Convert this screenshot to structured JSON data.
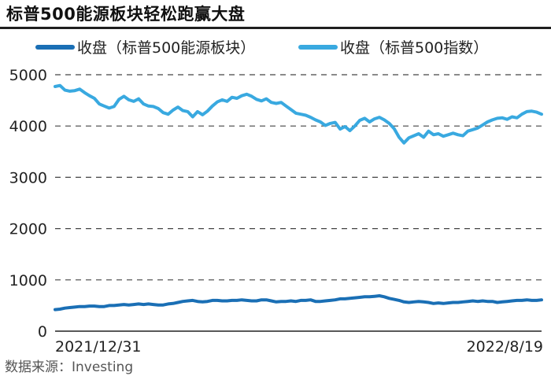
{
  "header": {
    "title": "标普500能源板块轻松跑赢大盘"
  },
  "footer": {
    "source": "数据来源：Investing"
  },
  "colors": {
    "energy": "#1a6fb5",
    "sp500": "#39a9e0",
    "grid": "#444444",
    "axis": "#222222"
  },
  "chart_data": {
    "type": "line",
    "title": "标普500能源板块轻松跑赢大盘",
    "xlabel": "",
    "ylabel": "",
    "x_tick_labels": [
      "2021/12/31",
      "2022/8/19"
    ],
    "x_range": [
      "2021/12/31",
      "2022/8/19"
    ],
    "y_ticks": [
      0,
      1000,
      2000,
      3000,
      4000,
      5000
    ],
    "ylim": [
      0,
      5000
    ],
    "grid": "horizontal dashed",
    "legend": "top",
    "series": [
      {
        "name": "收盘（标普500能源板块）",
        "color": "#1a6fb5",
        "values": [
          420,
          430,
          450,
          460,
          470,
          480,
          480,
          490,
          490,
          480,
          480,
          500,
          500,
          510,
          520,
          510,
          520,
          530,
          520,
          530,
          520,
          510,
          510,
          530,
          540,
          560,
          580,
          590,
          600,
          580,
          570,
          580,
          600,
          600,
          590,
          590,
          600,
          600,
          610,
          600,
          590,
          590,
          610,
          610,
          590,
          570,
          580,
          580,
          590,
          580,
          600,
          600,
          610,
          580,
          580,
          590,
          600,
          610,
          630,
          630,
          640,
          650,
          660,
          670,
          670,
          680,
          690,
          670,
          640,
          620,
          600,
          570,
          560,
          570,
          580,
          570,
          560,
          540,
          550,
          540,
          550,
          560,
          560,
          570,
          580,
          590,
          580,
          590,
          580,
          580,
          560,
          570,
          580,
          590,
          600,
          600,
          610,
          600,
          600,
          610
        ]
      },
      {
        "name": "收盘（标普500指数）",
        "color": "#39a9e0",
        "values": [
          4770,
          4790,
          4700,
          4680,
          4690,
          4720,
          4650,
          4590,
          4540,
          4430,
          4390,
          4350,
          4380,
          4520,
          4580,
          4510,
          4480,
          4530,
          4430,
          4390,
          4380,
          4340,
          4260,
          4230,
          4310,
          4370,
          4300,
          4280,
          4180,
          4280,
          4220,
          4290,
          4390,
          4470,
          4510,
          4480,
          4560,
          4540,
          4590,
          4620,
          4580,
          4520,
          4490,
          4530,
          4460,
          4440,
          4460,
          4390,
          4320,
          4250,
          4230,
          4210,
          4170,
          4120,
          4080,
          4010,
          4050,
          4070,
          3940,
          3990,
          3910,
          4000,
          4110,
          4150,
          4080,
          4140,
          4170,
          4120,
          4050,
          3950,
          3780,
          3670,
          3770,
          3810,
          3850,
          3780,
          3900,
          3830,
          3850,
          3800,
          3830,
          3860,
          3830,
          3810,
          3900,
          3930,
          3960,
          4020,
          4080,
          4120,
          4150,
          4160,
          4130,
          4180,
          4160,
          4230,
          4280,
          4290,
          4270,
          4230
        ]
      }
    ]
  }
}
